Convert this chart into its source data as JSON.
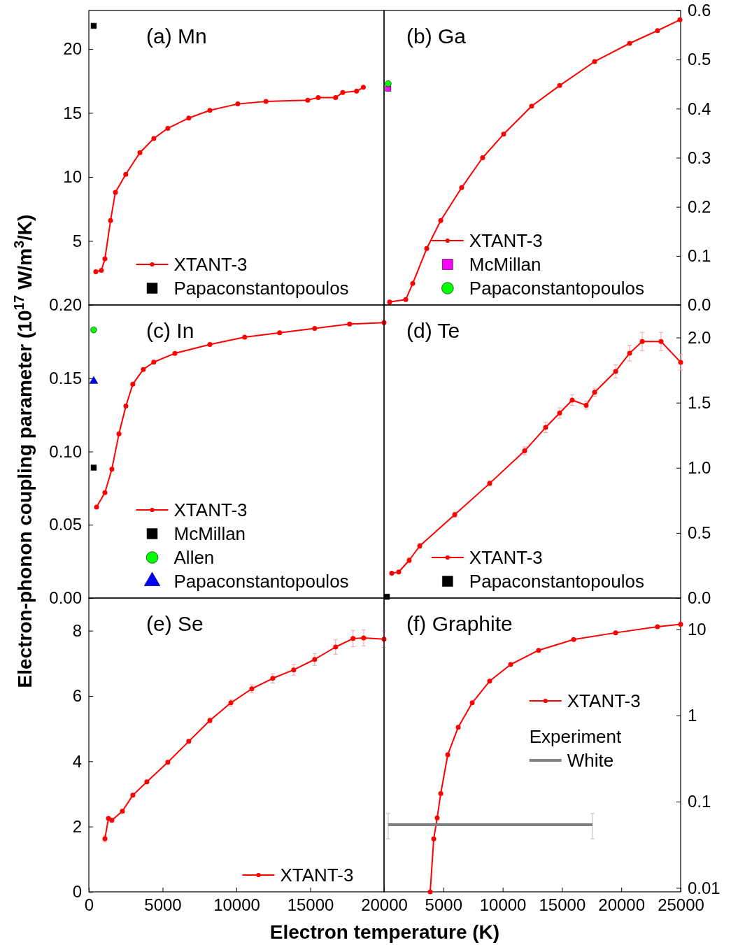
{
  "chart_data": [
    {
      "type": "line",
      "title": "(a) Mn",
      "xlim": [
        0,
        20000
      ],
      "ylim": [
        0,
        23
      ],
      "yticks": [
        5,
        10,
        15,
        20
      ],
      "tick_labels": "y",
      "legend": "bottom",
      "grid": false,
      "series": [
        {
          "name": "XTANT-3",
          "type": "line",
          "color": "#ff0000",
          "marker": "circle",
          "line_style": "solid",
          "x": [
            470,
            850,
            1090,
            1470,
            1800,
            2500,
            3460,
            4400,
            5350,
            6770,
            8200,
            10090,
            12000,
            14830,
            15540,
            16720,
            17200,
            18140,
            18600
          ],
          "values": [
            2.6,
            2.7,
            3.6,
            6.6,
            8.8,
            10.2,
            11.9,
            13.0,
            13.8,
            14.6,
            15.2,
            15.7,
            15.9,
            16.0,
            16.2,
            16.2,
            16.6,
            16.7,
            17.0
          ]
        },
        {
          "name": "Papaconstantopoulos",
          "type": "scatter",
          "color": "#000000",
          "marker": "square",
          "x": [
            330
          ],
          "values": [
            21.8
          ]
        }
      ]
    },
    {
      "type": "line",
      "title": "(b) Ga",
      "xlim": [
        0,
        25000
      ],
      "ylim": [
        0,
        0.6
      ],
      "yticks": [
        {
          "value": 0,
          "label": "0.0"
        },
        {
          "value": 0.1,
          "label": "0.1"
        },
        {
          "value": 0.2,
          "label": "0.2"
        },
        {
          "value": 0.3,
          "label": "0.3"
        },
        {
          "value": 0.4,
          "label": "0.4"
        },
        {
          "value": 0.5,
          "label": "0.5"
        },
        {
          "value": 0.6,
          "label": "0.6"
        }
      ],
      "tick_labels": "y",
      "legend": "bottom",
      "grid": false,
      "series": [
        {
          "name": "XTANT-3",
          "type": "line",
          "color": "#ff0000",
          "marker": "circle",
          "line_style": "solid",
          "x": [
            470,
            1830,
            2420,
            3600,
            4780,
            6540,
            8310,
            10080,
            12440,
            14800,
            17750,
            20700,
            23050,
            24940
          ],
          "values": [
            0.006,
            0.011,
            0.044,
            0.115,
            0.172,
            0.239,
            0.3,
            0.348,
            0.405,
            0.447,
            0.496,
            0.533,
            0.559,
            0.581
          ]
        },
        {
          "name": "McMillan",
          "type": "scatter",
          "color": "#ff00ff",
          "marker": "square",
          "x": [
            350
          ],
          "values": [
            0.441
          ]
        },
        {
          "name": "Papaconstantopoulos",
          "type": "scatter",
          "color": "#00ff00",
          "marker": "circle",
          "x": [
            350
          ],
          "values": [
            0.451
          ]
        }
      ]
    },
    {
      "type": "line",
      "title": "(c) In",
      "ylabel": "Electron-phonon coupling parameter (10$^{17}$ W/m$^{3}$/K)",
      "xlim": [
        0,
        20000
      ],
      "ylim": [
        0,
        0.2
      ],
      "yticks": [
        {
          "value": 0,
          "label": "0.00"
        },
        {
          "value": 0.05,
          "label": "0.05"
        },
        {
          "value": 0.1,
          "label": "0.10"
        },
        {
          "value": 0.15,
          "label": "0.15"
        },
        {
          "value": 0.2,
          "label": "0.20"
        }
      ],
      "tick_labels": "y",
      "legend": "bottom",
      "grid": false,
      "series": [
        {
          "name": "XTANT-3",
          "type": "line",
          "color": "#ff0000",
          "marker": "circle",
          "line_style": "solid",
          "x": [
            520,
            1090,
            1560,
            2040,
            2510,
            2980,
            3690,
            4400,
            5830,
            8200,
            10560,
            12930,
            15300,
            17670,
            20000
          ],
          "values": [
            0.062,
            0.072,
            0.088,
            0.112,
            0.131,
            0.146,
            0.156,
            0.161,
            0.167,
            0.173,
            0.178,
            0.181,
            0.184,
            0.187,
            0.188
          ]
        },
        {
          "name": "McMillan",
          "type": "scatter",
          "color": "#000000",
          "marker": "square",
          "x": [
            330
          ],
          "values": [
            0.089
          ]
        },
        {
          "name": "Allen",
          "type": "scatter",
          "color": "#00ff00",
          "marker": "circle",
          "x": [
            330
          ],
          "values": [
            0.183
          ]
        },
        {
          "name": "Papaconstantopoulos",
          "type": "scatter",
          "color": "#0000ff",
          "marker": "triangle",
          "x": [
            330
          ],
          "values": [
            0.148
          ]
        }
      ]
    },
    {
      "type": "line",
      "title": "(d) Te",
      "xlim": [
        0,
        25000
      ],
      "ylim": [
        0,
        2.25
      ],
      "yticks": [
        {
          "value": 0,
          "label": "0.0"
        },
        {
          "value": 0.5,
          "label": "0.5"
        },
        {
          "value": 1,
          "label": "1.0"
        },
        {
          "value": 1.5,
          "label": "1.5"
        },
        {
          "value": 2,
          "label": "2.0"
        }
      ],
      "tick_labels": "y",
      "legend": "bottom",
      "grid": false,
      "series": [
        {
          "name": "XTANT-3",
          "type": "line",
          "color": "#ff0000",
          "marker": "circle",
          "line_style": "solid",
          "x": [
            650,
            1240,
            2120,
            3010,
            5960,
            8900,
            11850,
            13620,
            14800,
            15860,
            17040,
            17750,
            19520,
            20700,
            21760,
            23350,
            25000
          ],
          "values": [
            0.19,
            0.2,
            0.29,
            0.4,
            0.64,
            0.88,
            1.13,
            1.31,
            1.42,
            1.52,
            1.48,
            1.58,
            1.74,
            1.88,
            1.97,
            1.97,
            1.81
          ],
          "errors": [
            null,
            null,
            0.02,
            0.02,
            0.02,
            0.02,
            0.03,
            0.04,
            0.04,
            0.04,
            0.03,
            0.03,
            0.05,
            0.06,
            0.07,
            0.07,
            0.06
          ]
        },
        {
          "name": "Papaconstantopoulos",
          "type": "scatter",
          "color": "#000000",
          "marker": "square",
          "x": [
            240
          ],
          "values": [
            0.01
          ]
        }
      ]
    },
    {
      "type": "line",
      "title": "(e) Se",
      "xlabel": "Electron temperature (K)",
      "xlim": [
        0,
        20000
      ],
      "xticks": [
        0,
        5000,
        10000,
        15000,
        20000
      ],
      "ylim": [
        0,
        9
      ],
      "yticks": [
        0,
        2,
        4,
        6,
        8
      ],
      "legend": "bottom right",
      "grid": false,
      "series": [
        {
          "name": "XTANT-3",
          "type": "line",
          "color": "#ff0000",
          "marker": "circle",
          "line_style": "solid",
          "x": [
            1090,
            1330,
            1560,
            2270,
            2980,
            3930,
            5350,
            6770,
            8200,
            9620,
            11040,
            12460,
            13880,
            15300,
            16720,
            17900,
            18620,
            20000
          ],
          "values": [
            1.63,
            2.25,
            2.19,
            2.47,
            2.96,
            3.37,
            3.97,
            4.61,
            5.25,
            5.79,
            6.22,
            6.54,
            6.8,
            7.12,
            7.5,
            7.76,
            7.78,
            7.74
          ],
          "errors": [
            0.1,
            null,
            null,
            0.05,
            0.05,
            0.05,
            0.05,
            0.05,
            0.08,
            0.1,
            0.12,
            0.14,
            0.16,
            0.18,
            0.22,
            0.25,
            0.25,
            0.25
          ]
        }
      ]
    },
    {
      "type": "line",
      "title": "(f) Graphite",
      "xlim": [
        0,
        25000
      ],
      "xticks": [
        5000,
        10000,
        15000,
        20000,
        25000
      ],
      "ylim": [
        0.009,
        23
      ],
      "yticks": [
        0.01,
        0.1,
        1,
        10
      ],
      "log": "y",
      "legend": "right",
      "legend_title": "Experiment",
      "grid": false,
      "series": [
        {
          "name": "XTANT-3",
          "type": "line",
          "color": "#ff0000",
          "marker": "circle",
          "line_style": "solid",
          "x": [
            3890,
            4190,
            4480,
            4780,
            5370,
            6250,
            7430,
            8900,
            10670,
            13030,
            15980,
            19520,
            23050,
            25000
          ],
          "values": [
            0.009,
            0.037,
            0.065,
            0.124,
            0.35,
            0.73,
            1.4,
            2.5,
            3.9,
            5.7,
            7.6,
            9.1,
            10.7,
            11.4
          ]
        },
        {
          "name": "White",
          "type": "line",
          "color": "#808080",
          "marker": "none",
          "line_style": "solid",
          "x": [
            350,
            17570
          ],
          "values": [
            0.054,
            0.054
          ],
          "errors": [
            [
              0.037,
              0.073
            ],
            [
              0.037,
              0.073
            ]
          ]
        }
      ]
    }
  ]
}
